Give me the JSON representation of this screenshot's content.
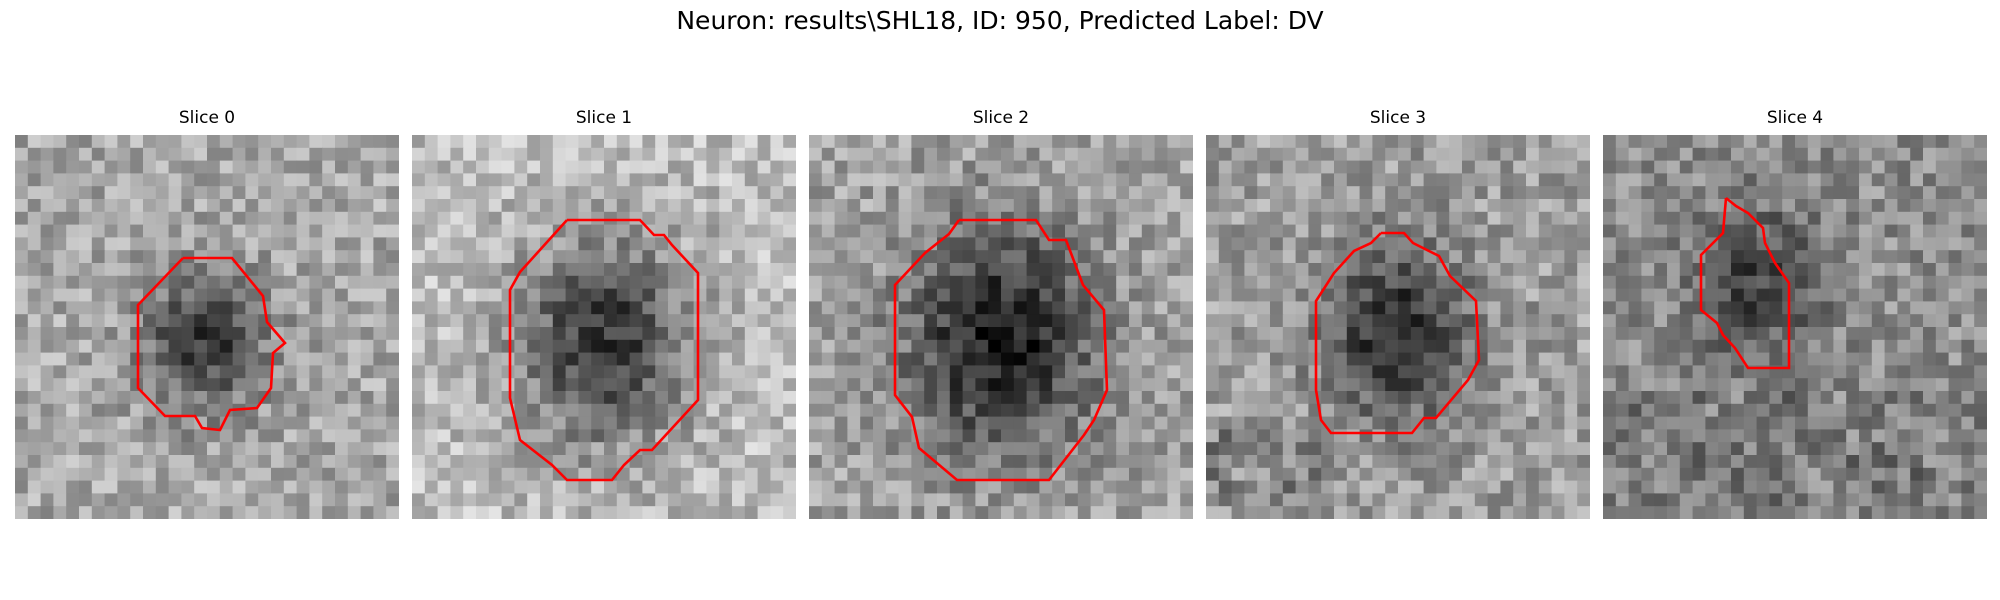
{
  "figure": {
    "title": "Neuron: results\\SHL18, ID: 950, Predicted Label: DV"
  },
  "colors": {
    "contour": "#ff0000"
  },
  "panels": [
    {
      "title": "Slice 0"
    },
    {
      "title": "Slice 1"
    },
    {
      "title": "Slice 2"
    },
    {
      "title": "Slice 3"
    },
    {
      "title": "Slice 4"
    }
  ]
}
